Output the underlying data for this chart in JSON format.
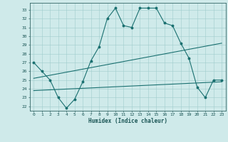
{
  "xlabel": "Humidex (Indice chaleur)",
  "background_color": "#cfeaea",
  "line_color": "#1a7070",
  "xlim": [
    -0.5,
    23.5
  ],
  "ylim": [
    21.5,
    33.8
  ],
  "yticks": [
    22,
    23,
    24,
    25,
    26,
    27,
    28,
    29,
    30,
    31,
    32,
    33
  ],
  "xticks": [
    0,
    1,
    2,
    3,
    4,
    5,
    6,
    7,
    8,
    9,
    10,
    11,
    12,
    13,
    14,
    15,
    16,
    17,
    18,
    19,
    20,
    21,
    22,
    23
  ],
  "curve1_x": [
    0,
    1,
    2,
    3,
    4,
    5,
    6,
    7,
    8,
    9,
    10,
    11,
    12,
    13,
    14,
    15,
    16,
    17,
    18,
    19,
    20,
    21,
    22,
    23
  ],
  "curve1_y": [
    27.0,
    26.0,
    25.0,
    23.0,
    21.8,
    22.8,
    24.8,
    27.2,
    28.8,
    32.0,
    33.2,
    31.2,
    31.0,
    33.2,
    33.2,
    33.2,
    31.5,
    31.2,
    29.2,
    27.5,
    24.2,
    23.0,
    25.0,
    25.0
  ],
  "curve2_x": [
    0,
    23
  ],
  "curve2_y": [
    25.2,
    29.2
  ],
  "curve3_x": [
    0,
    23
  ],
  "curve3_y": [
    23.8,
    24.8
  ]
}
